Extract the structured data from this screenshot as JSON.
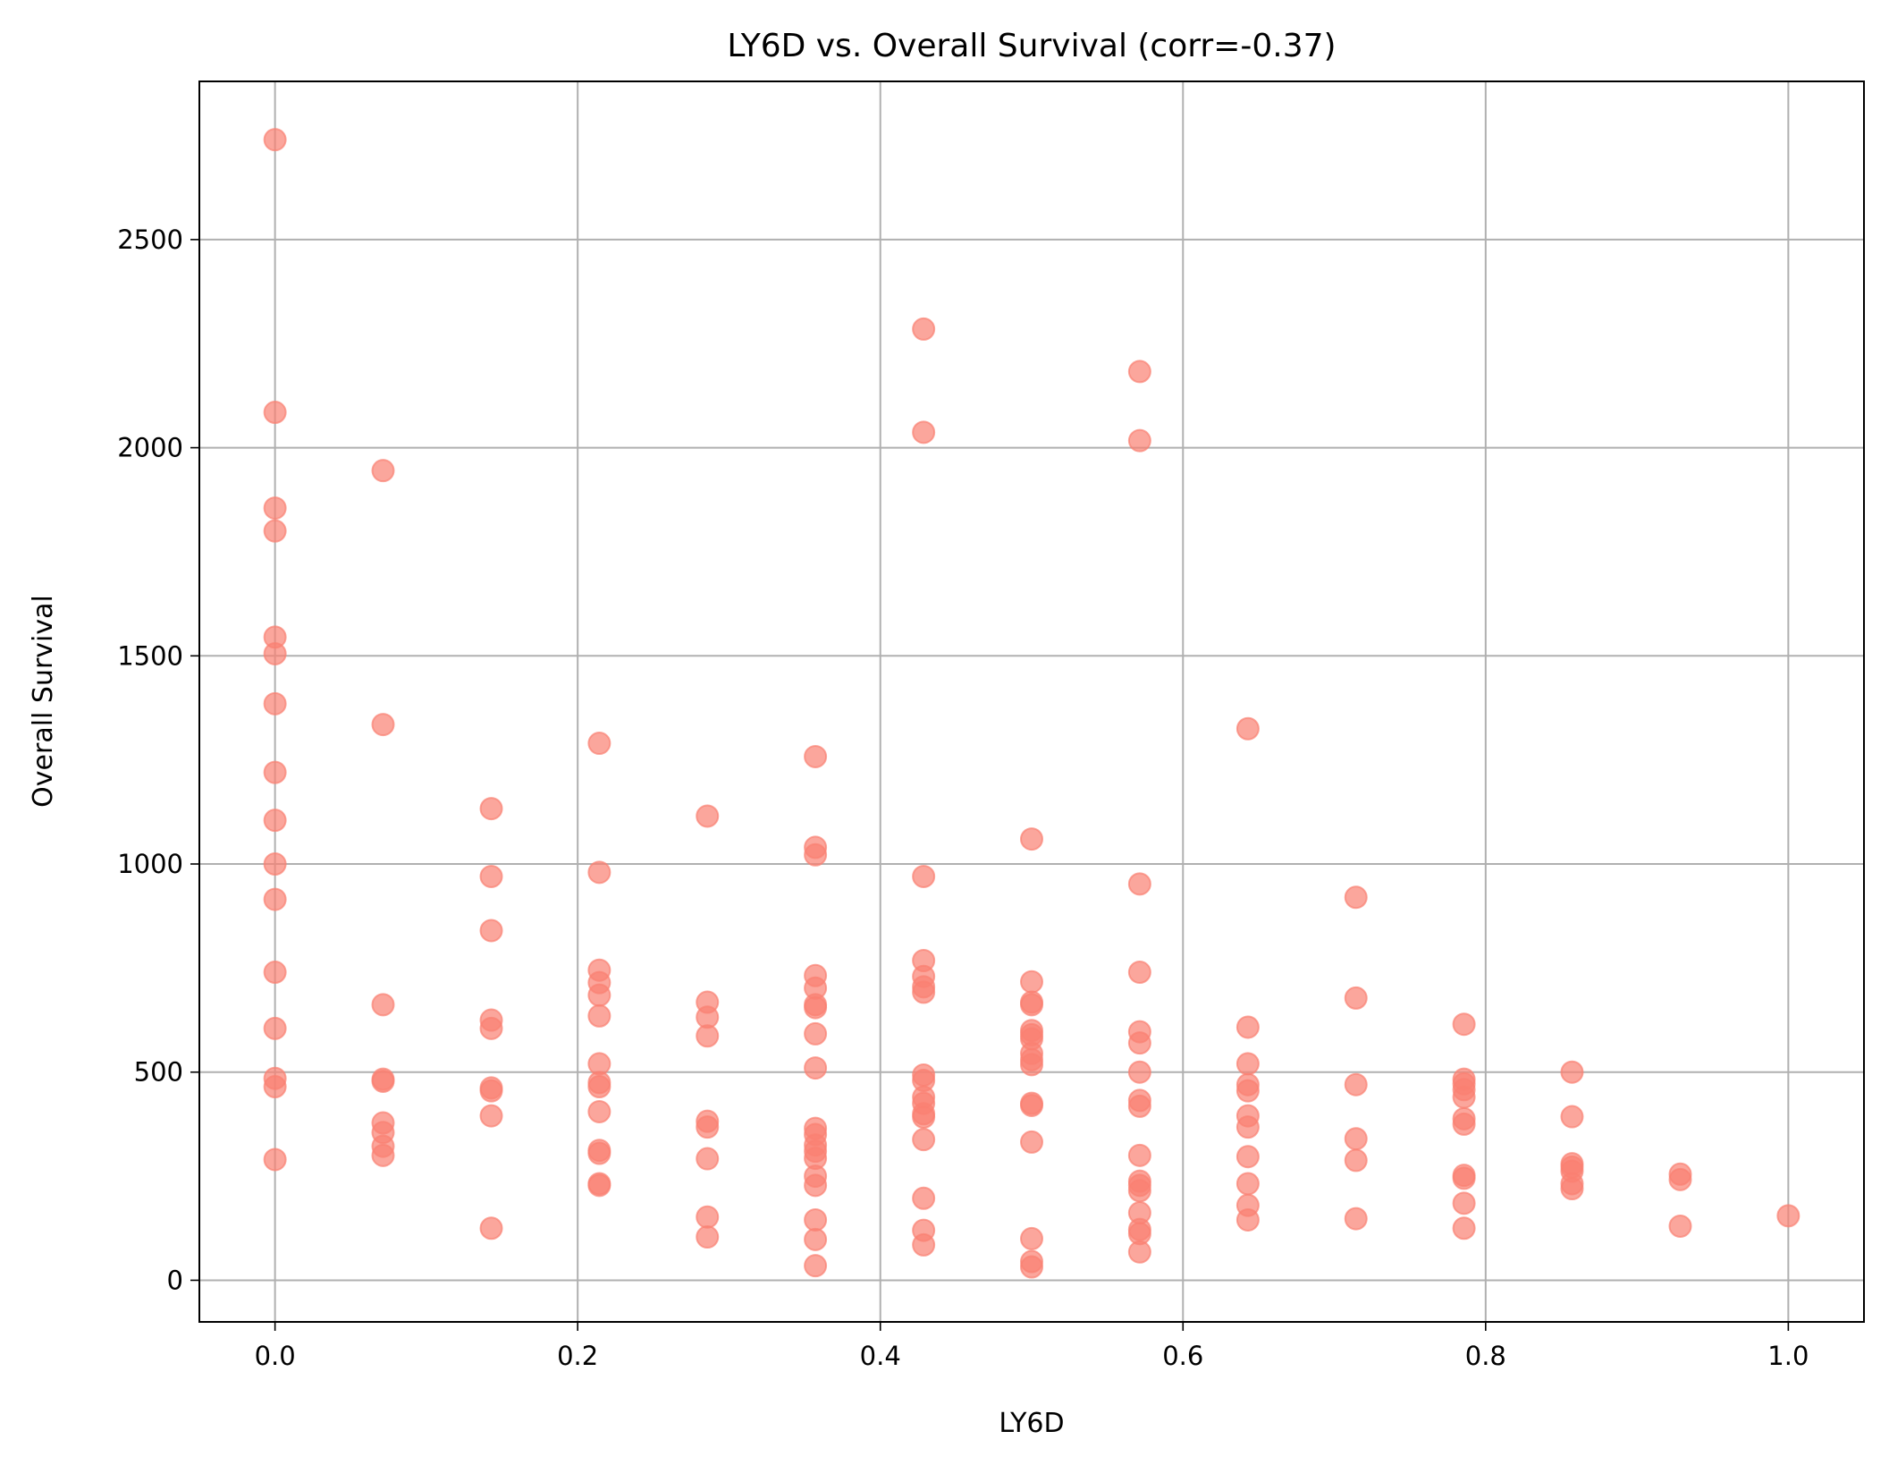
{
  "chart_data": {
    "type": "scatter",
    "title": "LY6D vs. Overall Survival (corr=-0.37)",
    "xlabel": "LY6D",
    "ylabel": "Overall Survival",
    "xlim": [
      -0.05,
      1.05
    ],
    "ylim": [
      -100,
      2880
    ],
    "xticks": [
      0.0,
      0.2,
      0.4,
      0.6,
      0.8,
      1.0
    ],
    "xtick_labels": [
      "0.0",
      "0.2",
      "0.4",
      "0.6",
      "0.8",
      "1.0"
    ],
    "yticks": [
      0,
      500,
      1000,
      1500,
      2000,
      2500
    ],
    "ytick_labels": [
      "0",
      "500",
      "1000",
      "1500",
      "2000",
      "2500"
    ],
    "grid": true,
    "marker_color": "#fa8072",
    "marker_alpha": 0.7,
    "points": [
      {
        "x": 0.0,
        "y": 2740
      },
      {
        "x": 0.0,
        "y": 2085
      },
      {
        "x": 0.0,
        "y": 1855
      },
      {
        "x": 0.0,
        "y": 1800
      },
      {
        "x": 0.0,
        "y": 1545
      },
      {
        "x": 0.0,
        "y": 1505
      },
      {
        "x": 0.0,
        "y": 1385
      },
      {
        "x": 0.0,
        "y": 1220
      },
      {
        "x": 0.0,
        "y": 1105
      },
      {
        "x": 0.0,
        "y": 1000
      },
      {
        "x": 0.0,
        "y": 915
      },
      {
        "x": 0.0,
        "y": 740
      },
      {
        "x": 0.0,
        "y": 605
      },
      {
        "x": 0.0,
        "y": 485
      },
      {
        "x": 0.0,
        "y": 465
      },
      {
        "x": 0.0,
        "y": 290
      },
      {
        "x": 0.0714,
        "y": 1945
      },
      {
        "x": 0.0714,
        "y": 1335
      },
      {
        "x": 0.0714,
        "y": 662
      },
      {
        "x": 0.0714,
        "y": 483
      },
      {
        "x": 0.0714,
        "y": 478
      },
      {
        "x": 0.0714,
        "y": 378
      },
      {
        "x": 0.0714,
        "y": 355
      },
      {
        "x": 0.0714,
        "y": 322
      },
      {
        "x": 0.0714,
        "y": 300
      },
      {
        "x": 0.1429,
        "y": 1133
      },
      {
        "x": 0.1429,
        "y": 970
      },
      {
        "x": 0.1429,
        "y": 840
      },
      {
        "x": 0.1429,
        "y": 625
      },
      {
        "x": 0.1429,
        "y": 605
      },
      {
        "x": 0.1429,
        "y": 462
      },
      {
        "x": 0.1429,
        "y": 455
      },
      {
        "x": 0.1429,
        "y": 395
      },
      {
        "x": 0.1429,
        "y": 125
      },
      {
        "x": 0.2143,
        "y": 1290
      },
      {
        "x": 0.2143,
        "y": 980
      },
      {
        "x": 0.2143,
        "y": 745
      },
      {
        "x": 0.2143,
        "y": 715
      },
      {
        "x": 0.2143,
        "y": 685
      },
      {
        "x": 0.2143,
        "y": 635
      },
      {
        "x": 0.2143,
        "y": 520
      },
      {
        "x": 0.2143,
        "y": 475
      },
      {
        "x": 0.2143,
        "y": 465
      },
      {
        "x": 0.2143,
        "y": 405
      },
      {
        "x": 0.2143,
        "y": 312
      },
      {
        "x": 0.2143,
        "y": 305
      },
      {
        "x": 0.2143,
        "y": 232
      },
      {
        "x": 0.2143,
        "y": 228
      },
      {
        "x": 0.2857,
        "y": 1115
      },
      {
        "x": 0.2857,
        "y": 668
      },
      {
        "x": 0.2857,
        "y": 632
      },
      {
        "x": 0.2857,
        "y": 587
      },
      {
        "x": 0.2857,
        "y": 382
      },
      {
        "x": 0.2857,
        "y": 368
      },
      {
        "x": 0.2857,
        "y": 292
      },
      {
        "x": 0.2857,
        "y": 152
      },
      {
        "x": 0.2857,
        "y": 104
      },
      {
        "x": 0.3571,
        "y": 1258
      },
      {
        "x": 0.3571,
        "y": 1040
      },
      {
        "x": 0.3571,
        "y": 1022
      },
      {
        "x": 0.3571,
        "y": 732
      },
      {
        "x": 0.3571,
        "y": 702
      },
      {
        "x": 0.3571,
        "y": 662
      },
      {
        "x": 0.3571,
        "y": 655
      },
      {
        "x": 0.3571,
        "y": 592
      },
      {
        "x": 0.3571,
        "y": 510
      },
      {
        "x": 0.3571,
        "y": 365
      },
      {
        "x": 0.3571,
        "y": 350
      },
      {
        "x": 0.3571,
        "y": 325
      },
      {
        "x": 0.3571,
        "y": 310
      },
      {
        "x": 0.3571,
        "y": 293
      },
      {
        "x": 0.3571,
        "y": 250
      },
      {
        "x": 0.3571,
        "y": 228
      },
      {
        "x": 0.3571,
        "y": 145
      },
      {
        "x": 0.3571,
        "y": 98
      },
      {
        "x": 0.3571,
        "y": 35
      },
      {
        "x": 0.4286,
        "y": 2285
      },
      {
        "x": 0.4286,
        "y": 2037
      },
      {
        "x": 0.4286,
        "y": 970
      },
      {
        "x": 0.4286,
        "y": 768
      },
      {
        "x": 0.4286,
        "y": 730
      },
      {
        "x": 0.4286,
        "y": 705
      },
      {
        "x": 0.4286,
        "y": 692
      },
      {
        "x": 0.4286,
        "y": 493
      },
      {
        "x": 0.4286,
        "y": 480
      },
      {
        "x": 0.4286,
        "y": 440
      },
      {
        "x": 0.4286,
        "y": 425
      },
      {
        "x": 0.4286,
        "y": 400
      },
      {
        "x": 0.4286,
        "y": 392
      },
      {
        "x": 0.4286,
        "y": 338
      },
      {
        "x": 0.4286,
        "y": 197
      },
      {
        "x": 0.4286,
        "y": 120
      },
      {
        "x": 0.4286,
        "y": 85
      },
      {
        "x": 0.5,
        "y": 1060
      },
      {
        "x": 0.5,
        "y": 717
      },
      {
        "x": 0.5,
        "y": 668
      },
      {
        "x": 0.5,
        "y": 662
      },
      {
        "x": 0.5,
        "y": 600
      },
      {
        "x": 0.5,
        "y": 590
      },
      {
        "x": 0.5,
        "y": 580
      },
      {
        "x": 0.5,
        "y": 545
      },
      {
        "x": 0.5,
        "y": 530
      },
      {
        "x": 0.5,
        "y": 518
      },
      {
        "x": 0.5,
        "y": 425
      },
      {
        "x": 0.5,
        "y": 420
      },
      {
        "x": 0.5,
        "y": 332
      },
      {
        "x": 0.5,
        "y": 100
      },
      {
        "x": 0.5,
        "y": 45
      },
      {
        "x": 0.5,
        "y": 32
      },
      {
        "x": 0.5714,
        "y": 2183
      },
      {
        "x": 0.5714,
        "y": 2017
      },
      {
        "x": 0.5714,
        "y": 952
      },
      {
        "x": 0.5714,
        "y": 740
      },
      {
        "x": 0.5714,
        "y": 597
      },
      {
        "x": 0.5714,
        "y": 570
      },
      {
        "x": 0.5714,
        "y": 500
      },
      {
        "x": 0.5714,
        "y": 432
      },
      {
        "x": 0.5714,
        "y": 418
      },
      {
        "x": 0.5714,
        "y": 300
      },
      {
        "x": 0.5714,
        "y": 238
      },
      {
        "x": 0.5714,
        "y": 228
      },
      {
        "x": 0.5714,
        "y": 215
      },
      {
        "x": 0.5714,
        "y": 162
      },
      {
        "x": 0.5714,
        "y": 122
      },
      {
        "x": 0.5714,
        "y": 112
      },
      {
        "x": 0.5714,
        "y": 68
      },
      {
        "x": 0.6429,
        "y": 1325
      },
      {
        "x": 0.6429,
        "y": 608
      },
      {
        "x": 0.6429,
        "y": 520
      },
      {
        "x": 0.6429,
        "y": 470
      },
      {
        "x": 0.6429,
        "y": 455
      },
      {
        "x": 0.6429,
        "y": 395
      },
      {
        "x": 0.6429,
        "y": 368
      },
      {
        "x": 0.6429,
        "y": 297
      },
      {
        "x": 0.6429,
        "y": 232
      },
      {
        "x": 0.6429,
        "y": 180
      },
      {
        "x": 0.6429,
        "y": 145
      },
      {
        "x": 0.7143,
        "y": 920
      },
      {
        "x": 0.7143,
        "y": 678
      },
      {
        "x": 0.7143,
        "y": 470
      },
      {
        "x": 0.7143,
        "y": 340
      },
      {
        "x": 0.7143,
        "y": 288
      },
      {
        "x": 0.7143,
        "y": 148
      },
      {
        "x": 0.7857,
        "y": 615
      },
      {
        "x": 0.7857,
        "y": 483
      },
      {
        "x": 0.7857,
        "y": 472
      },
      {
        "x": 0.7857,
        "y": 458
      },
      {
        "x": 0.7857,
        "y": 440
      },
      {
        "x": 0.7857,
        "y": 388
      },
      {
        "x": 0.7857,
        "y": 375
      },
      {
        "x": 0.7857,
        "y": 252
      },
      {
        "x": 0.7857,
        "y": 245
      },
      {
        "x": 0.7857,
        "y": 185
      },
      {
        "x": 0.7857,
        "y": 125
      },
      {
        "x": 0.8571,
        "y": 500
      },
      {
        "x": 0.8571,
        "y": 393
      },
      {
        "x": 0.8571,
        "y": 280
      },
      {
        "x": 0.8571,
        "y": 272
      },
      {
        "x": 0.8571,
        "y": 262
      },
      {
        "x": 0.8571,
        "y": 232
      },
      {
        "x": 0.8571,
        "y": 220
      },
      {
        "x": 0.9286,
        "y": 255
      },
      {
        "x": 0.9286,
        "y": 242
      },
      {
        "x": 0.9286,
        "y": 130
      },
      {
        "x": 1.0,
        "y": 155
      }
    ]
  }
}
